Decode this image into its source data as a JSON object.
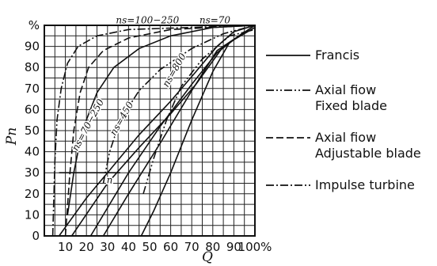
{
  "chart_data": {
    "type": "line",
    "xlabel": "Q",
    "ylabel": "Pn",
    "xlim": [
      0,
      100
    ],
    "ylim": [
      0,
      100
    ],
    "x_ticks": [
      "10",
      "20",
      "30",
      "40",
      "50",
      "60",
      "70",
      "80",
      "90",
      "100%"
    ],
    "y_ticks": [
      "0",
      "10",
      "20",
      "30",
      "40",
      "50",
      "60",
      "70",
      "80",
      "90",
      "%"
    ],
    "grid": true,
    "legend_position": "right",
    "legend": [
      {
        "label_lines": [
          "Francis"
        ],
        "style": "solid"
      },
      {
        "label_lines": [
          "Axial fiow",
          "Fixed blade"
        ],
        "style": "dash-dot-dot"
      },
      {
        "label_lines": [
          "Axial fiow",
          "Adjustable blade"
        ],
        "style": "dashed"
      },
      {
        "label_lines": [
          "Impulse turbine"
        ],
        "style": "dash-dot"
      }
    ],
    "annotations": [
      {
        "text": "ns=100−250",
        "x": 49,
        "y": 101,
        "rot": 0
      },
      {
        "text": "ns=70",
        "x": 81,
        "y": 101,
        "rot": 0
      },
      {
        "text": "ns=70−250",
        "x": 22,
        "y": 52,
        "rot": -62
      },
      {
        "text": "ns=450",
        "x": 38,
        "y": 55,
        "rot": -60
      },
      {
        "text": "ns=800",
        "x": 63,
        "y": 78,
        "rot": -60
      },
      {
        "text": "n",
        "x": 31,
        "y": 25,
        "rot": 0
      }
    ],
    "series": [
      {
        "style": "solid",
        "points": [
          [
            11,
            10
          ],
          [
            14,
            30
          ],
          [
            18,
            50
          ],
          [
            25,
            68
          ],
          [
            33,
            80
          ],
          [
            45,
            89
          ],
          [
            60,
            95
          ],
          [
            80,
            99
          ],
          [
            100,
            100
          ]
        ]
      },
      {
        "style": "solid",
        "points": [
          [
            7,
            0
          ],
          [
            20,
            18
          ],
          [
            30,
            30
          ],
          [
            45,
            48
          ],
          [
            60,
            64
          ],
          [
            72,
            78
          ],
          [
            82,
            90
          ],
          [
            90,
            97
          ],
          [
            100,
            100
          ]
        ]
      },
      {
        "style": "solid",
        "points": [
          [
            13,
            0
          ],
          [
            30,
            25
          ],
          [
            45,
            42
          ],
          [
            60,
            58
          ],
          [
            72,
            72
          ],
          [
            85,
            90
          ],
          [
            100,
            100
          ]
        ]
      },
      {
        "style": "solid",
        "points": [
          [
            28,
            0
          ],
          [
            40,
            20
          ],
          [
            55,
            44
          ],
          [
            70,
            69
          ],
          [
            82,
            88
          ],
          [
            100,
            100
          ]
        ]
      },
      {
        "style": "solid",
        "points": [
          [
            46,
            0
          ],
          [
            52,
            12
          ],
          [
            60,
            30
          ],
          [
            70,
            55
          ],
          [
            80,
            78
          ],
          [
            88,
            92
          ],
          [
            100,
            99
          ]
        ]
      },
      {
        "style": "solid",
        "points": [
          [
            22,
            0
          ],
          [
            28,
            10
          ],
          [
            40,
            30
          ],
          [
            55,
            52
          ],
          [
            70,
            72
          ],
          [
            82,
            87
          ],
          [
            95,
            97
          ]
        ]
      },
      {
        "style": "solid",
        "points": [
          [
            7,
            30
          ],
          [
            36,
            30
          ]
        ]
      },
      {
        "style": "dash-dot-dot",
        "points": [
          [
            28,
            25
          ],
          [
            31,
            40
          ],
          [
            36,
            55
          ],
          [
            45,
            69
          ],
          [
            55,
            79
          ],
          [
            70,
            89
          ],
          [
            85,
            96
          ],
          [
            100,
            100
          ]
        ]
      },
      {
        "style": "dash-dot-dot",
        "points": [
          [
            47,
            20
          ],
          [
            52,
            37
          ],
          [
            58,
            55
          ],
          [
            65,
            71
          ],
          [
            75,
            84
          ],
          [
            88,
            95
          ],
          [
            100,
            98
          ]
        ]
      },
      {
        "style": "dashed",
        "points": [
          [
            10,
            0
          ],
          [
            12,
            28
          ],
          [
            14,
            50
          ],
          [
            17,
            68
          ],
          [
            21,
            80
          ],
          [
            28,
            88
          ],
          [
            40,
            94
          ],
          [
            60,
            98
          ],
          [
            100,
            100
          ]
        ]
      },
      {
        "style": "dash-dot",
        "points": [
          [
            4,
            0
          ],
          [
            5,
            35
          ],
          [
            6,
            55
          ],
          [
            8,
            70
          ],
          [
            11,
            82
          ],
          [
            16,
            90
          ],
          [
            25,
            95
          ],
          [
            40,
            98
          ],
          [
            100,
            100
          ]
        ]
      }
    ]
  }
}
